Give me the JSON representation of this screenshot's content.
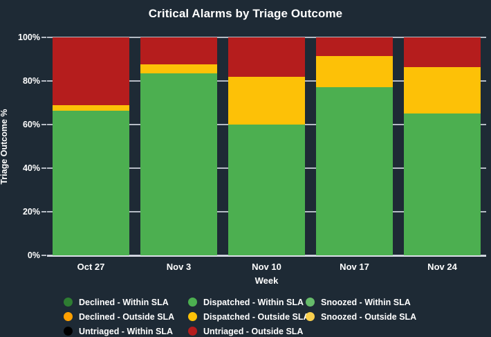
{
  "title": "Critical Alarms by Triage Outcome",
  "colors": {
    "background": "#1e2a35",
    "text": "#ffffff",
    "gridline": "#d1d6de",
    "axis_line": "#dcdfe9"
  },
  "chart_data": {
    "type": "bar",
    "stacked": true,
    "title": "Critical Alarms by Triage Outcome",
    "xlabel": "Week",
    "ylabel": "Triage Outcome %",
    "categories": [
      "Oct 27",
      "Nov 3",
      "Nov 10",
      "Nov 17",
      "Nov 24"
    ],
    "ylim": [
      0,
      100
    ],
    "y_ticks": [
      "0%",
      "20%",
      "40%",
      "60%",
      "80%",
      "100%"
    ],
    "grid": true,
    "legend_position": "bottom",
    "series": [
      {
        "name": "Declined - Within SLA",
        "color": "#2e7d32",
        "values": [
          0,
          0,
          0,
          0,
          0
        ]
      },
      {
        "name": "Dispatched - Within SLA",
        "color": "#4caf50",
        "values": [
          66.5,
          83.5,
          60,
          77,
          65
        ]
      },
      {
        "name": "Snoozed - Within SLA",
        "color": "#66bb6a",
        "values": [
          0,
          0,
          0,
          0,
          0
        ]
      },
      {
        "name": "Declined - Outside SLA",
        "color": "#ffa000",
        "values": [
          0,
          0,
          0,
          0,
          0
        ]
      },
      {
        "name": "Dispatched - Outside SLA",
        "color": "#fdc107",
        "values": [
          2.5,
          4,
          22,
          14.5,
          21.5
        ]
      },
      {
        "name": "Snoozed - Outside SLA",
        "color": "#f8cf4e",
        "values": [
          0,
          0,
          0,
          0,
          0
        ]
      },
      {
        "name": "Untriaged - Within SLA",
        "color": "#000000",
        "values": [
          0,
          0,
          0,
          0,
          0
        ]
      },
      {
        "name": "Untriaged - Outside SLA",
        "color": "#b51d1d",
        "values": [
          31,
          12.5,
          18,
          8.5,
          13.5
        ]
      }
    ]
  }
}
